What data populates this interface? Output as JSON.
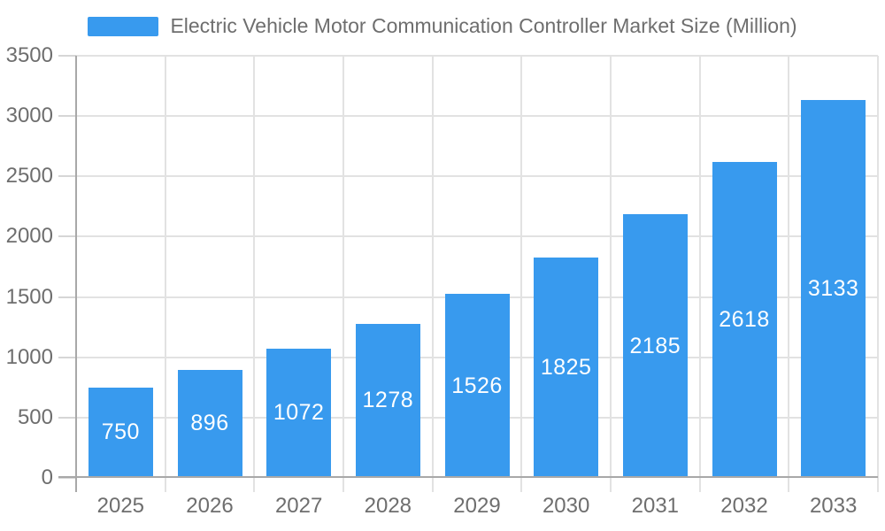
{
  "chart_data": {
    "type": "bar",
    "title": "Electric Vehicle Motor Communication Controller Market Size (Million)",
    "categories": [
      "2025",
      "2026",
      "2027",
      "2028",
      "2029",
      "2030",
      "2031",
      "2032",
      "2033"
    ],
    "values": [
      750,
      896,
      1072,
      1278,
      1526,
      1825,
      2185,
      2618,
      3133
    ],
    "xlabel": "",
    "ylabel": "",
    "ylim": [
      0,
      3500
    ],
    "ytick_step": 500,
    "yticks": [
      0,
      500,
      1000,
      1500,
      2000,
      2500,
      3000,
      3500
    ],
    "grid": true,
    "legend_position": "top",
    "bar_color": "#389AEE",
    "bar_label_color": "#FFFFFF",
    "axis_text_color": "#6E6E6E",
    "grid_color": "#E2E2E2",
    "tick_color": "#D6D6D6",
    "axis_line_color": "#A8A8A8",
    "background_color": "#FFFFFF"
  }
}
